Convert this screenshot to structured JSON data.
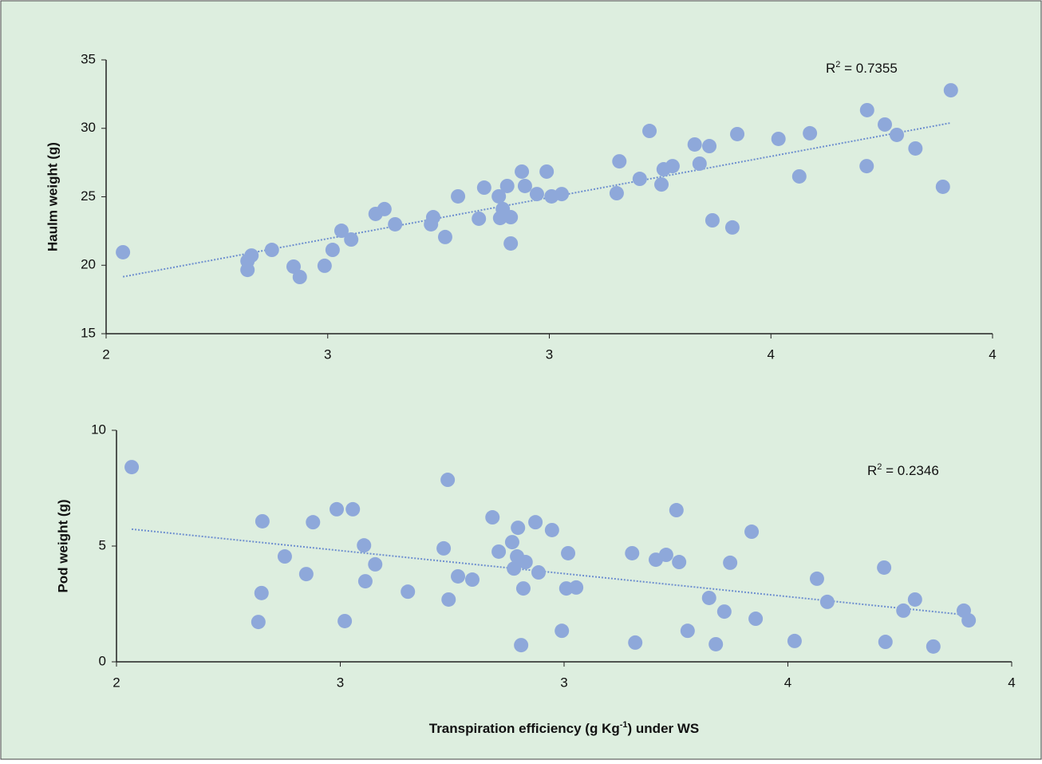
{
  "chart_data": [
    {
      "type": "scatter",
      "y_label": "Haulm weight (g)",
      "color": "#8ea8da",
      "annotation": [
        "R",
        "2",
        " = 0.7355"
      ],
      "x": [
        2.038,
        2.319,
        2.328,
        2.319,
        2.374,
        2.423,
        2.437,
        2.493,
        2.511,
        2.531,
        2.553,
        2.608,
        2.628,
        2.652,
        2.733,
        2.738,
        2.765,
        2.794,
        2.841,
        2.853,
        2.886,
        2.895,
        2.889,
        2.905,
        2.913,
        2.913,
        2.938,
        2.945,
        2.972,
        2.994,
        3.005,
        3.028,
        3.152,
        3.158,
        3.204,
        3.226,
        3.253,
        3.258,
        3.278,
        3.328,
        3.339,
        3.361,
        3.368,
        3.413,
        3.424,
        3.517,
        3.564,
        3.588,
        3.717,
        3.716,
        3.757,
        3.784,
        3.826,
        3.888,
        3.906
      ],
      "values": [
        20.95,
        20.31,
        20.71,
        19.66,
        21.12,
        19.9,
        19.14,
        19.96,
        21.12,
        22.52,
        21.88,
        23.75,
        24.1,
        22.99,
        22.99,
        23.51,
        22.06,
        25.03,
        23.4,
        25.67,
        25.03,
        24.1,
        23.45,
        25.79,
        23.51,
        21.59,
        26.84,
        25.79,
        25.2,
        26.84,
        25.03,
        25.2,
        25.26,
        27.59,
        26.31,
        29.81,
        25.9,
        27.01,
        27.24,
        28.82,
        27.42,
        28.7,
        23.28,
        22.76,
        29.58,
        29.23,
        26.49,
        29.64,
        31.33,
        27.24,
        30.28,
        29.52,
        28.53,
        25.73,
        32.78
      ],
      "xlim": [
        2,
        4
      ],
      "xticks": [
        2,
        {
          "value": 2.5,
          "label": "3"
        },
        3,
        {
          "value": 3.5,
          "label": "4"
        },
        4
      ],
      "ylim": [
        15,
        35
      ],
      "yticks": [
        15,
        20,
        25,
        30,
        35
      ],
      "trendline": true
    },
    {
      "type": "scatter",
      "y_label": "Pod weight (g)",
      "color": "#8ea8da",
      "x_label": [
        "Transpiration efficiency (g Kg",
        "-1",
        ") under WS"
      ],
      "annotation": [
        "R",
        "2",
        " = 0.2346"
      ],
      "x": [
        2.034,
        2.326,
        2.324,
        2.317,
        2.376,
        2.424,
        2.439,
        2.492,
        2.528,
        2.51,
        2.553,
        2.556,
        2.578,
        2.651,
        2.731,
        2.74,
        2.742,
        2.763,
        2.795,
        2.84,
        2.854,
        2.884,
        2.888,
        2.895,
        2.897,
        2.904,
        2.909,
        2.914,
        2.936,
        2.943,
        2.973,
        2.995,
        3.005,
        3.009,
        3.027,
        3.152,
        3.159,
        3.205,
        3.228,
        3.251,
        3.257,
        3.276,
        3.324,
        3.339,
        3.358,
        3.371,
        3.419,
        3.428,
        3.515,
        3.565,
        3.588,
        3.715,
        3.718,
        3.758,
        3.784,
        3.825,
        3.893,
        3.904
      ],
      "values": [
        8.41,
        6.07,
        2.97,
        1.72,
        4.55,
        3.79,
        6.03,
        6.59,
        6.59,
        1.76,
        5.03,
        3.48,
        4.21,
        3.03,
        4.9,
        7.86,
        2.69,
        3.69,
        3.55,
        6.24,
        4.76,
        5.17,
        4.03,
        4.55,
        5.79,
        0.72,
        3.17,
        4.31,
        6.03,
        3.86,
        5.69,
        1.34,
        3.17,
        4.69,
        3.21,
        4.69,
        0.83,
        4.41,
        4.62,
        6.55,
        4.31,
        1.34,
        2.76,
        0.76,
        2.17,
        4.28,
        5.62,
        1.86,
        0.9,
        3.59,
        2.59,
        4.07,
        0.86,
        2.21,
        2.69,
        0.66,
        2.21,
        1.79
      ],
      "xlim": [
        2,
        4
      ],
      "xticks": [
        2,
        {
          "value": 2.5,
          "label": "3"
        },
        3,
        {
          "value": 3.5,
          "label": "4"
        },
        4
      ],
      "ylim": [
        0,
        10
      ],
      "yticks": [
        0,
        5,
        10
      ],
      "trendline": true
    }
  ]
}
